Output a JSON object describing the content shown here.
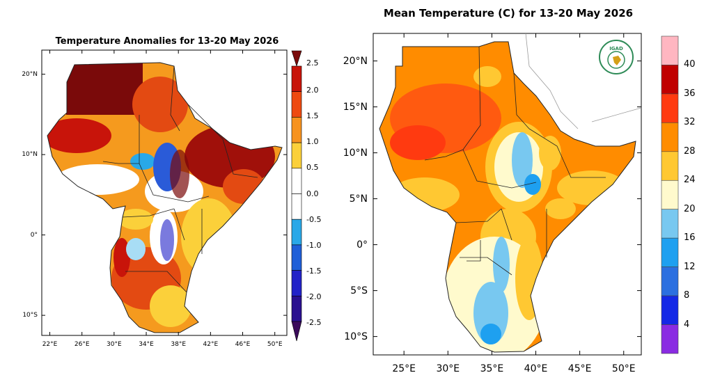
{
  "left_map": {
    "title": "Temperature Anomalies for 13-20 May 2026",
    "lat_ticks": [
      {
        "label": "20°N",
        "value": 20
      },
      {
        "label": "10°N",
        "value": 10
      },
      {
        "label": "0°",
        "value": 0
      },
      {
        "label": "10°S",
        "value": -10
      }
    ],
    "lon_ticks": [
      {
        "label": "22°E",
        "value": 22
      },
      {
        "label": "26°E",
        "value": 26
      },
      {
        "label": "30°E",
        "value": 30
      },
      {
        "label": "34°E",
        "value": 34
      },
      {
        "label": "38°E",
        "value": 38
      },
      {
        "label": "42°E",
        "value": 42
      },
      {
        "label": "46°E",
        "value": 46
      },
      {
        "label": "50°E",
        "value": 50
      }
    ],
    "colorbar": {
      "labels": [
        "2.5",
        "2.0",
        "1.5",
        "1.0",
        "0.5",
        "0.0",
        "-0.5",
        "-1.0",
        "-1.5",
        "-2.0",
        "-2.5"
      ],
      "colors": [
        "#7a0a0a",
        "#c8140a",
        "#ee4a10",
        "#f7931e",
        "#fbd03a",
        "#ffffff",
        "#ffffff",
        "#29a8e8",
        "#1f5fd8",
        "#2222c8",
        "#2a1090",
        "#3a0a5a"
      ]
    }
  },
  "right_map": {
    "title": "Mean Temperature (C) for 13-20 May 2026",
    "lat_ticks": [
      {
        "label": "20°N",
        "value": 20
      },
      {
        "label": "15°N",
        "value": 15
      },
      {
        "label": "10°N",
        "value": 10
      },
      {
        "label": "5°N",
        "value": 5
      },
      {
        "label": "0°",
        "value": 0
      },
      {
        "label": "5°S",
        "value": -5
      },
      {
        "label": "10°S",
        "value": -10
      }
    ],
    "lon_ticks": [
      {
        "label": "25°E",
        "value": 25
      },
      {
        "label": "30°E",
        "value": 30
      },
      {
        "label": "35°E",
        "value": 35
      },
      {
        "label": "40°E",
        "value": 40
      },
      {
        "label": "45°E",
        "value": 45
      },
      {
        "label": "50°E",
        "value": 50
      }
    ],
    "colorbar": {
      "labels": [
        "40",
        "36",
        "32",
        "28",
        "24",
        "20",
        "16",
        "12",
        "8",
        "4"
      ],
      "colors": [
        "#ffb6c1",
        "#c00000",
        "#ff3a10",
        "#ff8c00",
        "#ffc832",
        "#fffacd",
        "#78c8f0",
        "#1ea0f0",
        "#2b6fe0",
        "#1428e6",
        "#8a2be2"
      ]
    },
    "logo": {
      "text": "IGAD",
      "icon": "igad-logo-icon"
    }
  }
}
